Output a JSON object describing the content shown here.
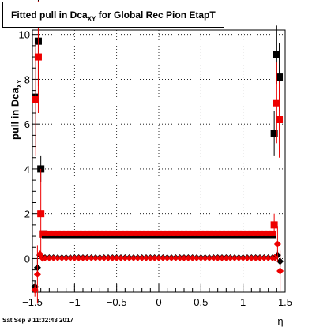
{
  "title": {
    "main": "Fitted pull in Dca",
    "sub": "XY",
    "rest": " for Global Rec Pion EtapT"
  },
  "footer": {
    "datetime": "Sat Sep  9 11:32:43 2017"
  },
  "chart_data": {
    "type": "scatter",
    "title": "Fitted pull in Dca_XY for Global Rec Pion EtapT",
    "xlabel": "η",
    "ylabel": "pull in Dca_XY",
    "xlim": [
      -1.5,
      1.5
    ],
    "ylim": [
      -1.5,
      10.2
    ],
    "xticks": [
      "−1.5",
      "−1",
      "−0.5",
      "0",
      "0.5",
      "1",
      "1.5"
    ],
    "yticks": [
      "0",
      "2",
      "4",
      "6",
      "8",
      "10"
    ],
    "grid": true,
    "series": [
      {
        "marker": "square",
        "color": "#000000",
        "x": [
          -1.46,
          -1.43,
          -1.4,
          -1.37,
          1.37,
          1.4,
          1.43
        ],
        "y": [
          7.2,
          9.7,
          4.0,
          1.1,
          5.6,
          9.1,
          8.1
        ],
        "err": [
          2.2,
          2.0,
          0.6,
          0.1,
          1.0,
          1.3,
          1.5
        ]
      },
      {
        "marker": "square",
        "color": "#ee0000",
        "x": [
          -1.46,
          -1.43,
          -1.4,
          -1.37,
          1.37,
          1.4,
          1.43
        ],
        "y": [
          7.1,
          9.0,
          2.0,
          1.1,
          1.5,
          6.95,
          6.2
        ],
        "err": [
          2.5,
          2.5,
          2.0,
          0.1,
          0.5,
          1.8,
          1.7
        ]
      },
      {
        "marker": "band",
        "color": "#000000",
        "y": 1.05,
        "x_range": [
          -1.35,
          1.35
        ]
      },
      {
        "marker": "band",
        "color": "#ee0000",
        "y": 1.08,
        "x_range": [
          -1.35,
          1.35
        ]
      },
      {
        "marker": "diamond",
        "color": "#000000",
        "x": [
          -1.47,
          -1.44,
          -1.41,
          -1.38,
          1.38,
          1.41,
          1.44
        ],
        "y": [
          -1.25,
          -0.4,
          0.15,
          0.05,
          0.05,
          0.15,
          -0.12
        ],
        "err": [
          0.25,
          0.4,
          0.1,
          0.05,
          0.05,
          0.2,
          0.25
        ]
      },
      {
        "marker": "diamond",
        "color": "#ee0000",
        "x": [
          -1.47,
          -1.44,
          -1.41,
          -1.38,
          1.38,
          1.41,
          1.44
        ],
        "y": [
          -1.4,
          -0.7,
          0.2,
          0.02,
          0.05,
          0.65,
          -0.55
        ],
        "err": [
          0.3,
          1.3,
          0.15,
          0.05,
          0.05,
          0.8,
          0.9
        ]
      },
      {
        "marker": "diamond-band",
        "color": "#ee0000",
        "y": 0.02,
        "x_range": [
          -1.35,
          1.35
        ]
      }
    ]
  }
}
